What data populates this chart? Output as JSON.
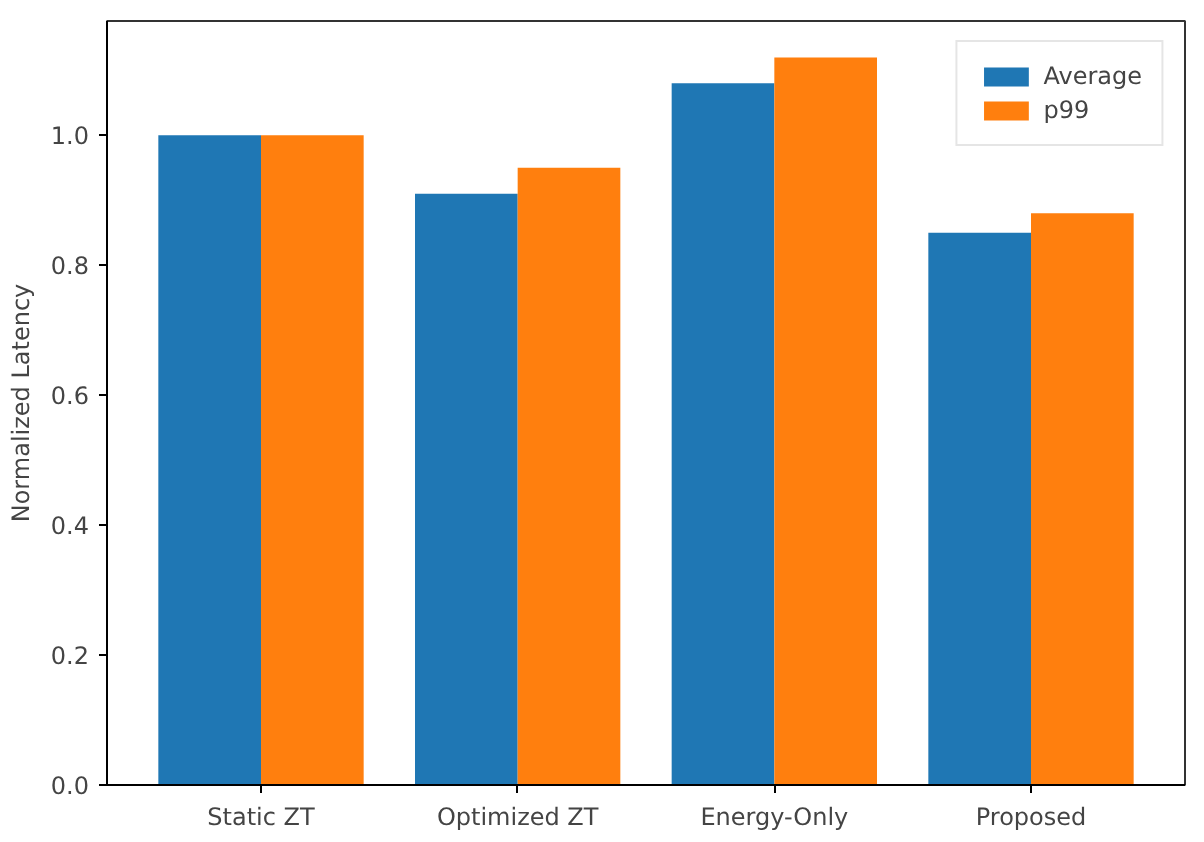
{
  "chart_data": {
    "type": "bar",
    "ylabel": "Normalized Latency",
    "categories": [
      "Static ZT",
      "Optimized ZT",
      "Energy-Only",
      "Proposed"
    ],
    "series": [
      {
        "name": "Average",
        "color": "#1f77b4",
        "values": [
          1.0,
          0.91,
          1.08,
          0.85
        ]
      },
      {
        "name": "p99",
        "color": "#ff7f0e",
        "values": [
          1.0,
          0.95,
          1.12,
          0.88
        ]
      }
    ],
    "ylim": [
      0,
      1.176
    ],
    "yticks": [
      {
        "value": 0,
        "label": "0.0"
      },
      0.2,
      0.4,
      0.6,
      0.8,
      {
        "value": 1,
        "label": "1.0"
      }
    ],
    "grid": false,
    "legend": "top right"
  }
}
